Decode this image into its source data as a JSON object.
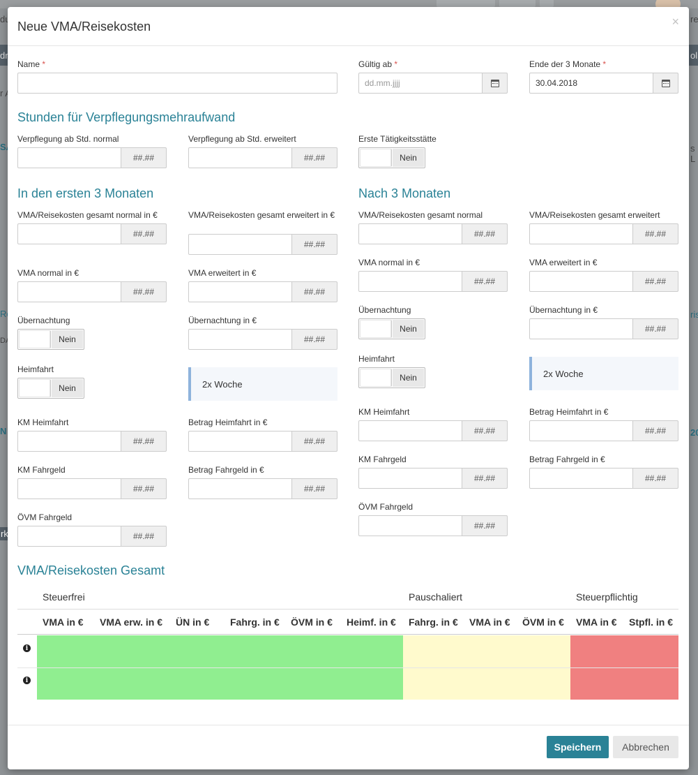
{
  "modal": {
    "title": "Neue VMA/Reisekosten",
    "close_glyph": "×",
    "required_mark": "*"
  },
  "fields": {
    "name": {
      "label": "Name",
      "value": ""
    },
    "gueltig_ab": {
      "label": "Gültig ab",
      "value": "",
      "placeholder": "dd.mm.jjjj"
    },
    "ende_3_monate": {
      "label": "Ende der 3 Monate",
      "value": "30.04.2018"
    }
  },
  "number_addon": "##.##",
  "toggle_off_label": "Nein",
  "info_box_text": "2x Woche",
  "section_stunden": {
    "title": "Stunden für Verpflegungsmehraufwand",
    "verpflegung_normal": "Verpflegung ab Std. normal",
    "verpflegung_erweitert": "Verpflegung ab Std. erweitert",
    "erste_taetigkeitsstaette": "Erste Tätigkeitsstätte"
  },
  "section_first": {
    "title": "In den ersten 3 Monaten",
    "vma_gesamt_normal": "VMA/Reisekosten gesamt normal in €",
    "vma_gesamt_erweitert": "VMA/Reisekosten gesamt erweitert in €",
    "vma_normal": "VMA normal in €",
    "vma_erweitert": "VMA erweitert in €",
    "uebernachtung": "Übernachtung",
    "uebernachtung_eur": "Übernachtung in €",
    "heimfahrt": "Heimfahrt",
    "km_heimfahrt": "KM Heimfahrt",
    "betrag_heimfahrt": "Betrag Heimfahrt in €",
    "km_fahrgeld": "KM Fahrgeld",
    "betrag_fahrgeld": "Betrag Fahrgeld in €",
    "oevm_fahrgeld": "ÖVM Fahrgeld"
  },
  "section_after": {
    "title": "Nach 3 Monaten",
    "vma_gesamt_normal": "VMA/Reisekosten gesamt normal",
    "vma_gesamt_erweitert": "VMA/Reisekosten gesamt erweitert",
    "vma_normal": "VMA normal in €",
    "vma_erweitert": "VMA erweitert in €",
    "uebernachtung": "Übernachtung",
    "uebernachtung_eur": "Übernachtung in €",
    "heimfahrt": "Heimfahrt",
    "km_heimfahrt": "KM Heimfahrt",
    "betrag_heimfahrt": "Betrag Heimfahrt in €",
    "km_fahrgeld": "KM Fahrgeld",
    "betrag_fahrgeld": "Betrag Fahrgeld in €",
    "oevm_fahrgeld": "ÖVM Fahrgeld"
  },
  "totals": {
    "title": "VMA/Reisekosten Gesamt",
    "groups": [
      "Steuerfrei",
      "Pauschaliert",
      "Steuerpflichtig"
    ],
    "columns": [
      "VMA in €",
      "VMA erw. in €",
      "ÜN in €",
      "Fahrg. in €",
      "ÖVM in €",
      "Heimf. in €",
      "Fahrg. in €",
      "VMA in €",
      "ÖVM in €",
      "VMA in €",
      "Stpfl. in €"
    ],
    "group_colors": {
      "steuerfrei": "#90ee90",
      "pauschaliert": "#fffacd",
      "steuerpflichtig": "#f08080"
    },
    "info_glyph": "i"
  },
  "buttons": {
    "save": "Speichern",
    "cancel": "Abbrechen"
  },
  "background": {
    "left_fragments": [
      "du",
      "dr",
      "r A",
      "SA",
      "Re",
      "DA",
      "N",
      "rk"
    ],
    "right_fragments": [
      "re",
      "oli",
      "s L",
      "rise",
      "20"
    ]
  }
}
